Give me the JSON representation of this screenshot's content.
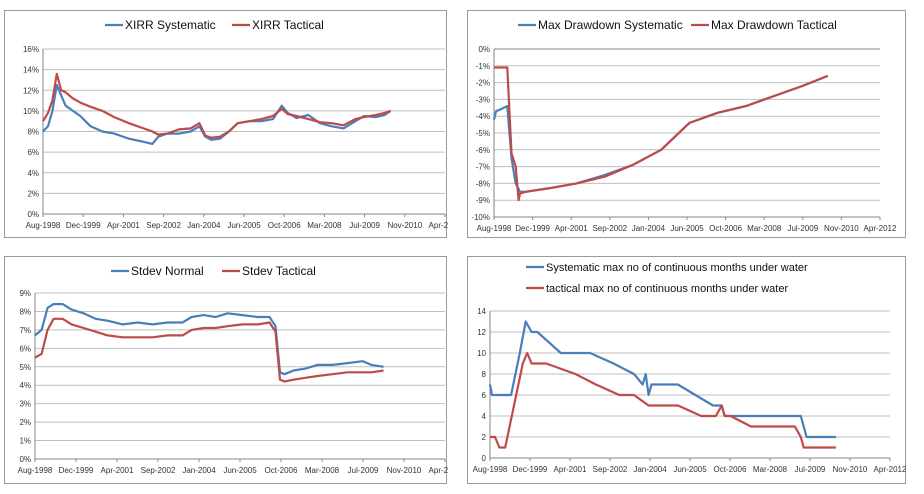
{
  "colors": {
    "blue": "#4a7ebb",
    "red": "#be4b48",
    "grid": "#bfbfbf",
    "axis": "#868686"
  },
  "x_ticks": [
    "Aug-1998",
    "Dec-1999",
    "Apr-2001",
    "Sep-2002",
    "Jan-2004",
    "Jun-2005",
    "Oct-2006",
    "Mar-2008",
    "Jul-2009",
    "Nov-2010",
    "Apr-2012"
  ],
  "chart_data": [
    {
      "id": "xirr",
      "type": "line",
      "title": "",
      "xlabel": "",
      "ylabel": "",
      "legend_position": "top",
      "xlim": [
        1998.58,
        2012.25
      ],
      "ylim": [
        0,
        16
      ],
      "y_ticks": [
        "0%",
        "2%",
        "4%",
        "6%",
        "8%",
        "10%",
        "12%",
        "14%",
        "16%"
      ],
      "series": [
        {
          "name": "XIRR Systematic",
          "color": "blue",
          "x": [
            1998.58,
            1998.75,
            1998.9,
            1999.05,
            1999.2,
            1999.35,
            1999.6,
            1999.85,
            2000.2,
            2000.6,
            2001.0,
            2001.5,
            2002.0,
            2002.3,
            2002.5,
            2002.8,
            2003.2,
            2003.6,
            2003.9,
            2004.1,
            2004.3,
            2004.6,
            2004.9,
            2005.2,
            2005.6,
            2006.0,
            2006.4,
            2006.7,
            2006.9,
            2007.2,
            2007.6,
            2008.0,
            2008.4,
            2008.8,
            2009.2,
            2009.5,
            2009.9,
            2010.2,
            2010.4
          ],
          "y": [
            8.0,
            8.5,
            10.0,
            12.5,
            11.5,
            10.5,
            10.0,
            9.5,
            8.5,
            8.0,
            7.8,
            7.3,
            7.0,
            6.8,
            7.5,
            7.8,
            7.8,
            8.0,
            8.5,
            7.5,
            7.2,
            7.3,
            8.0,
            8.8,
            9.0,
            9.0,
            9.2,
            10.5,
            9.8,
            9.3,
            9.6,
            8.8,
            8.5,
            8.3,
            9.0,
            9.5,
            9.4,
            9.6,
            10.0
          ]
        },
        {
          "name": "XIRR Tactical",
          "color": "red",
          "x": [
            1998.58,
            1998.75,
            1998.9,
            1999.05,
            1999.2,
            1999.35,
            1999.6,
            1999.85,
            2000.2,
            2000.6,
            2001.0,
            2001.5,
            2002.0,
            2002.3,
            2002.5,
            2002.8,
            2003.2,
            2003.6,
            2003.9,
            2004.1,
            2004.3,
            2004.6,
            2004.9,
            2005.2,
            2005.6,
            2006.0,
            2006.4,
            2006.7,
            2006.9,
            2007.2,
            2007.6,
            2008.0,
            2008.4,
            2008.8,
            2009.2,
            2009.5,
            2009.9,
            2010.2,
            2010.4
          ],
          "y": [
            9.0,
            9.8,
            11.0,
            13.6,
            12.0,
            11.8,
            11.2,
            10.8,
            10.4,
            10.0,
            9.4,
            8.8,
            8.3,
            8.0,
            7.7,
            7.8,
            8.2,
            8.3,
            8.8,
            7.6,
            7.4,
            7.5,
            8.0,
            8.8,
            9.0,
            9.2,
            9.5,
            10.2,
            9.7,
            9.5,
            9.2,
            8.9,
            8.8,
            8.6,
            9.2,
            9.4,
            9.6,
            9.8,
            10.0
          ]
        }
      ]
    },
    {
      "id": "maxdd",
      "type": "line",
      "title": "",
      "xlabel": "",
      "ylabel": "",
      "legend_position": "top",
      "xlim": [
        1998.58,
        2012.25
      ],
      "ylim": [
        -10,
        0
      ],
      "y_ticks": [
        "-10%",
        "-9%",
        "-8%",
        "-7%",
        "-6%",
        "-5%",
        "-4%",
        "-3%",
        "-2%",
        "-1%",
        "0%"
      ],
      "series": [
        {
          "name": "Max Drawdown Systematic",
          "color": "blue",
          "x": [
            1998.58,
            1998.65,
            1998.8,
            1999.05,
            1999.2,
            1999.35,
            1999.5,
            1999.7,
            2000.5,
            2001.5,
            2002.5,
            2003.5,
            2004.5,
            2005.5,
            2006.5,
            2007.5,
            2008.5,
            2009.5,
            2010.4
          ],
          "y": [
            -4.2,
            -3.7,
            -3.6,
            -3.4,
            -6.5,
            -8.0,
            -8.5,
            -8.5,
            -8.3,
            -8.0,
            -7.5,
            -6.9,
            -6.0,
            -4.4,
            -3.8,
            -3.4,
            -2.8,
            -2.2,
            -1.6
          ]
        },
        {
          "name": "Max Drawdown Tactical",
          "color": "red",
          "x": [
            1998.58,
            1998.75,
            1999.05,
            1999.2,
            1999.35,
            1999.45,
            1999.5,
            1999.7,
            2000.5,
            2001.5,
            2002.5,
            2003.5,
            2004.5,
            2005.5,
            2006.5,
            2007.5,
            2008.5,
            2009.5,
            2010.4
          ],
          "y": [
            -1.1,
            -1.1,
            -1.1,
            -6.2,
            -7.0,
            -9.0,
            -8.6,
            -8.5,
            -8.3,
            -8.0,
            -7.6,
            -6.9,
            -6.0,
            -4.4,
            -3.8,
            -3.4,
            -2.8,
            -2.2,
            -1.6
          ]
        }
      ]
    },
    {
      "id": "stdev",
      "type": "line",
      "title": "",
      "xlabel": "",
      "ylabel": "",
      "legend_position": "top",
      "xlim": [
        1998.58,
        2012.25
      ],
      "ylim": [
        0,
        9
      ],
      "y_ticks": [
        "0%",
        "1%",
        "2%",
        "3%",
        "4%",
        "5%",
        "6%",
        "7%",
        "8%",
        "9%"
      ],
      "series": [
        {
          "name": "Stdev Normal",
          "color": "blue",
          "x": [
            1998.58,
            1998.8,
            1999.0,
            1999.2,
            1999.5,
            1999.8,
            2000.2,
            2000.6,
            2001.0,
            2001.5,
            2002.0,
            2002.5,
            2003.0,
            2003.5,
            2003.8,
            2004.2,
            2004.6,
            2005.0,
            2005.5,
            2006.0,
            2006.4,
            2006.6,
            2006.75,
            2006.9,
            2007.2,
            2007.6,
            2008.0,
            2008.5,
            2009.0,
            2009.5,
            2009.8,
            2010.2
          ],
          "y": [
            6.7,
            7.0,
            8.2,
            8.4,
            8.4,
            8.1,
            7.9,
            7.6,
            7.5,
            7.3,
            7.4,
            7.3,
            7.4,
            7.4,
            7.7,
            7.8,
            7.7,
            7.9,
            7.8,
            7.7,
            7.7,
            7.2,
            4.7,
            4.6,
            4.8,
            4.9,
            5.1,
            5.1,
            5.2,
            5.3,
            5.1,
            5.0
          ]
        },
        {
          "name": "Stdev Tactical",
          "color": "red",
          "x": [
            1998.58,
            1998.8,
            1999.0,
            1999.2,
            1999.5,
            1999.8,
            2000.2,
            2000.6,
            2001.0,
            2001.5,
            2002.0,
            2002.5,
            2003.0,
            2003.5,
            2003.8,
            2004.2,
            2004.6,
            2005.0,
            2005.5,
            2006.0,
            2006.4,
            2006.6,
            2006.75,
            2006.9,
            2007.2,
            2007.6,
            2008.0,
            2008.5,
            2009.0,
            2009.5,
            2009.8,
            2010.2
          ],
          "y": [
            5.5,
            5.7,
            7.0,
            7.6,
            7.6,
            7.3,
            7.1,
            6.9,
            6.7,
            6.6,
            6.6,
            6.6,
            6.7,
            6.7,
            7.0,
            7.1,
            7.1,
            7.2,
            7.3,
            7.3,
            7.4,
            6.9,
            4.3,
            4.2,
            4.3,
            4.4,
            4.5,
            4.6,
            4.7,
            4.7,
            4.7,
            4.8
          ]
        }
      ]
    },
    {
      "id": "underwater",
      "type": "line",
      "title": "",
      "xlabel": "",
      "ylabel": "",
      "legend_position": "top",
      "xlim": [
        1998.58,
        2012.25
      ],
      "ylim": [
        0,
        14
      ],
      "y_ticks": [
        "0",
        "2",
        "4",
        "6",
        "8",
        "10",
        "12",
        "14"
      ],
      "series": [
        {
          "name": "Systematic max no of continuous months under water",
          "color": "blue",
          "x": [
            1998.58,
            1998.65,
            1998.7,
            1999.3,
            1999.6,
            1999.8,
            2000.0,
            2000.2,
            2000.6,
            2001.0,
            2002.0,
            2002.8,
            2003.5,
            2003.8,
            2003.9,
            2004.0,
            2004.1,
            2005.0,
            2005.6,
            2006.2,
            2006.5,
            2006.6,
            2006.7,
            2007.0,
            2008.0,
            2008.5,
            2009.2,
            2009.4,
            2010.0,
            2010.4
          ],
          "y": [
            7,
            6,
            6,
            6,
            10,
            13,
            12,
            12,
            11,
            10,
            10,
            9,
            8,
            7,
            8,
            6,
            7,
            7,
            6,
            5,
            5,
            4,
            4,
            4,
            4,
            4,
            4,
            2,
            2,
            2
          ]
        },
        {
          "name": "tactical max no of continuous months under water",
          "color": "red",
          "x": [
            1998.58,
            1998.75,
            1998.9,
            1999.1,
            1999.4,
            1999.7,
            1999.85,
            2000.0,
            2000.5,
            2001.5,
            2002.2,
            2003.0,
            2003.5,
            2004.0,
            2005.0,
            2005.8,
            2006.3,
            2006.5,
            2006.6,
            2006.8,
            2007.5,
            2008.2,
            2008.5,
            2009.0,
            2009.2,
            2009.3,
            2009.5,
            2010.4
          ],
          "y": [
            2,
            2,
            1,
            1,
            5,
            9,
            10,
            9,
            9,
            8,
            7,
            6,
            6,
            5,
            5,
            4,
            4,
            5,
            4,
            4,
            3,
            3,
            3,
            3,
            2,
            1,
            1,
            1
          ]
        }
      ]
    }
  ]
}
